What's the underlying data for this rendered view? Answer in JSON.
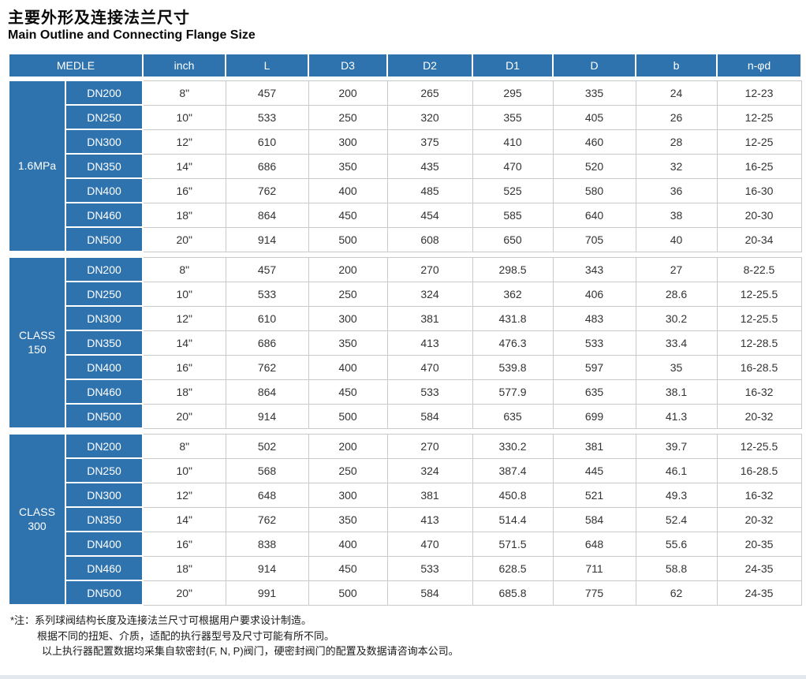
{
  "colors": {
    "accent_blue": "#2f73ae",
    "grid_line": "#c9c9c9",
    "page_edge": "#e2e8ee"
  },
  "page": {
    "title_zh": "主要外形及连接法兰尺寸",
    "title_en": "Main Outline and Connecting Flange Size"
  },
  "table": {
    "header": {
      "medle": "MEDLE",
      "cols": [
        "inch",
        "L",
        "D3",
        "D2",
        "D1",
        "D",
        "b",
        "n-φd"
      ]
    },
    "groups": [
      {
        "label_line1": "1.6MPa",
        "label_line2": "",
        "rows": [
          {
            "dn": "DN200",
            "values": [
              "8\"",
              "457",
              "200",
              "265",
              "295",
              "335",
              "24",
              "12-23"
            ]
          },
          {
            "dn": "DN250",
            "values": [
              "10\"",
              "533",
              "250",
              "320",
              "355",
              "405",
              "26",
              "12-25"
            ]
          },
          {
            "dn": "DN300",
            "values": [
              "12\"",
              "610",
              "300",
              "375",
              "410",
              "460",
              "28",
              "12-25"
            ]
          },
          {
            "dn": "DN350",
            "values": [
              "14\"",
              "686",
              "350",
              "435",
              "470",
              "520",
              "32",
              "16-25"
            ]
          },
          {
            "dn": "DN400",
            "values": [
              "16\"",
              "762",
              "400",
              "485",
              "525",
              "580",
              "36",
              "16-30"
            ]
          },
          {
            "dn": "DN460",
            "values": [
              "18\"",
              "864",
              "450",
              "454",
              "585",
              "640",
              "38",
              "20-30"
            ]
          },
          {
            "dn": "DN500",
            "values": [
              "20\"",
              "914",
              "500",
              "608",
              "650",
              "705",
              "40",
              "20-34"
            ]
          }
        ]
      },
      {
        "label_line1": "CLASS",
        "label_line2": "150",
        "rows": [
          {
            "dn": "DN200",
            "values": [
              "8\"",
              "457",
              "200",
              "270",
              "298.5",
              "343",
              "27",
              "8-22.5"
            ]
          },
          {
            "dn": "DN250",
            "values": [
              "10\"",
              "533",
              "250",
              "324",
              "362",
              "406",
              "28.6",
              "12-25.5"
            ]
          },
          {
            "dn": "DN300",
            "values": [
              "12\"",
              "610",
              "300",
              "381",
              "431.8",
              "483",
              "30.2",
              "12-25.5"
            ]
          },
          {
            "dn": "DN350",
            "values": [
              "14\"",
              "686",
              "350",
              "413",
              "476.3",
              "533",
              "33.4",
              "12-28.5"
            ]
          },
          {
            "dn": "DN400",
            "values": [
              "16\"",
              "762",
              "400",
              "470",
              "539.8",
              "597",
              "35",
              "16-28.5"
            ]
          },
          {
            "dn": "DN460",
            "values": [
              "18\"",
              "864",
              "450",
              "533",
              "577.9",
              "635",
              "38.1",
              "16-32"
            ]
          },
          {
            "dn": "DN500",
            "values": [
              "20\"",
              "914",
              "500",
              "584",
              "635",
              "699",
              "41.3",
              "20-32"
            ]
          }
        ]
      },
      {
        "label_line1": "CLASS",
        "label_line2": "300",
        "rows": [
          {
            "dn": "DN200",
            "values": [
              "8\"",
              "502",
              "200",
              "270",
              "330.2",
              "381",
              "39.7",
              "12-25.5"
            ]
          },
          {
            "dn": "DN250",
            "values": [
              "10\"",
              "568",
              "250",
              "324",
              "387.4",
              "445",
              "46.1",
              "16-28.5"
            ]
          },
          {
            "dn": "DN300",
            "values": [
              "12\"",
              "648",
              "300",
              "381",
              "450.8",
              "521",
              "49.3",
              "16-32"
            ]
          },
          {
            "dn": "DN350",
            "values": [
              "14\"",
              "762",
              "350",
              "413",
              "514.4",
              "584",
              "52.4",
              "20-32"
            ]
          },
          {
            "dn": "DN400",
            "values": [
              "16\"",
              "838",
              "400",
              "470",
              "571.5",
              "648",
              "55.6",
              "20-35"
            ]
          },
          {
            "dn": "DN460",
            "values": [
              "18\"",
              "914",
              "450",
              "533",
              "628.5",
              "711",
              "58.8",
              "24-35"
            ]
          },
          {
            "dn": "DN500",
            "values": [
              "20\"",
              "991",
              "500",
              "584",
              "685.8",
              "775",
              "62",
              "24-35"
            ]
          }
        ]
      }
    ]
  },
  "notes": {
    "line1": "*注：系列球阀结构长度及连接法兰尺寸可根据用户要求设计制造。",
    "line2": "根据不同的扭矩、介质，适配的执行器型号及尺寸可能有所不同。",
    "line3": "以上执行器配置数据均采集自软密封(F, N, P)阀门，硬密封阀门的配置及数据请咨询本公司。"
  }
}
